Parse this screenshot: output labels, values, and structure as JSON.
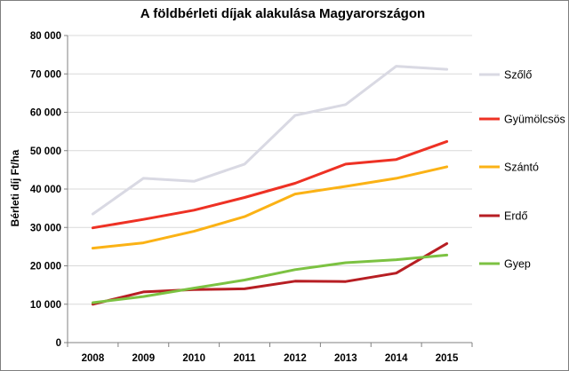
{
  "chart_data": {
    "type": "line",
    "title": "A földbérleti díjak alakulása Magyarországon",
    "ylabel": "Bérleti díj Ft/ha",
    "xlabel": "",
    "categories": [
      "2008",
      "2009",
      "2010",
      "2011",
      "2012",
      "2013",
      "2014",
      "2015"
    ],
    "ylim": [
      0,
      80000
    ],
    "yticks": [
      0,
      10000,
      20000,
      30000,
      40000,
      50000,
      60000,
      70000,
      80000
    ],
    "ytick_labels": [
      "0",
      "10 000",
      "20 000",
      "30 000",
      "40 000",
      "50 000",
      "60 000",
      "70 000",
      "80 000"
    ],
    "grid": true,
    "legend_position": "right",
    "series": [
      {
        "name": "Szőlő",
        "color": "#d9d9e3",
        "values": [
          33500,
          42800,
          42000,
          46500,
          59200,
          62000,
          72000,
          71200
        ]
      },
      {
        "name": "Gyümölcsös",
        "color": "#ee3124",
        "values": [
          29900,
          32100,
          34500,
          37800,
          41500,
          46500,
          47700,
          52400
        ]
      },
      {
        "name": "Szántó",
        "color": "#fbb215",
        "values": [
          24600,
          26000,
          29000,
          32800,
          38700,
          40700,
          42800,
          45800
        ]
      },
      {
        "name": "Erdő",
        "color": "#b71e23",
        "values": [
          10000,
          13200,
          13800,
          14000,
          16000,
          15900,
          18100,
          25800
        ]
      },
      {
        "name": "Gyep",
        "color": "#7cc242",
        "values": [
          10400,
          12000,
          14200,
          16300,
          19000,
          20800,
          21600,
          22800
        ]
      }
    ]
  }
}
